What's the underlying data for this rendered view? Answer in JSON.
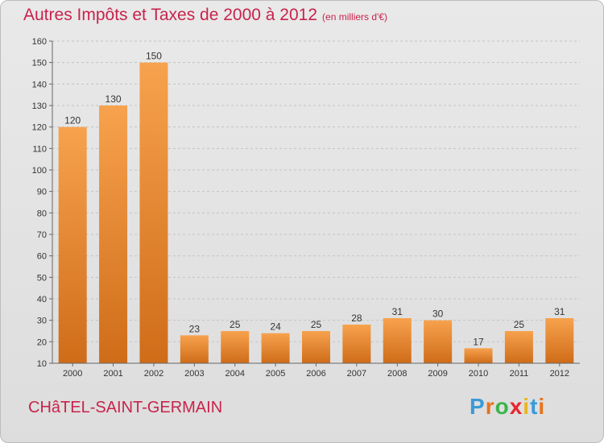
{
  "title": "Autres Impôts et Taxes de 2000 à 2012",
  "subtitle": "(en milliers d'€)",
  "commune": "CHâTEL-SAINT-GERMAIN",
  "logo": {
    "letters": [
      "P",
      "r",
      "o",
      "x",
      "i",
      "t",
      "i"
    ],
    "colors": [
      "#3a9ad9",
      "#e8731e",
      "#3ab54a",
      "#e8242e",
      "#e8b51e",
      "#3a9ad9",
      "#e8731e"
    ]
  },
  "colors": {
    "bar": "#e8832e",
    "title": "#c8234b"
  },
  "chart_data": {
    "type": "bar",
    "categories": [
      "2000",
      "2001",
      "2002",
      "2003",
      "2004",
      "2005",
      "2006",
      "2007",
      "2008",
      "2009",
      "2010",
      "2011",
      "2012"
    ],
    "values": [
      120,
      130,
      150,
      23,
      25,
      24,
      25,
      28,
      31,
      30,
      17,
      25,
      31
    ],
    "ylim": [
      10,
      160
    ],
    "yticks": [
      10,
      20,
      30,
      40,
      50,
      60,
      70,
      80,
      90,
      100,
      110,
      120,
      130,
      140,
      150,
      160
    ],
    "grid": true
  }
}
